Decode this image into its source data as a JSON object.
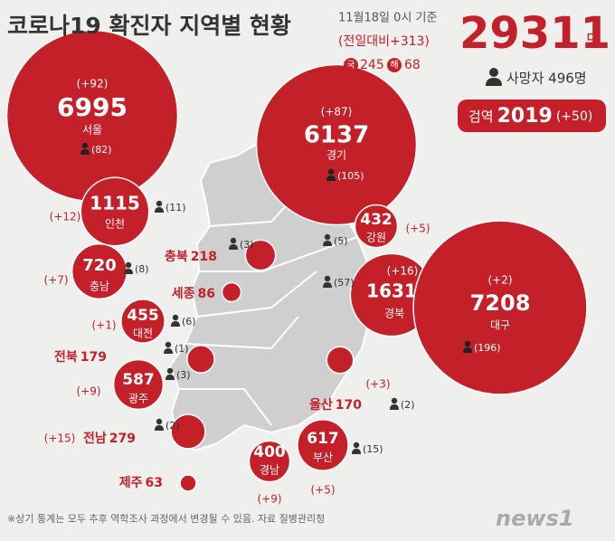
{
  "header": {
    "title": "코로나19 확진자 지역별 현황",
    "date": "11월18일 0시 기준",
    "total": 29311,
    "total_unit": "명",
    "daily_change": "(전일대비+313)",
    "domestic_label": "국",
    "domestic": 245,
    "overseas_label": "해",
    "overseas": 68,
    "deaths": "사망자 496명",
    "quarantine_label": "검역",
    "quarantine": 2019,
    "quarantine_change": "(+50)"
  },
  "regions": [
    {
      "name": "서울",
      "count": 6995,
      "change": "(+92)",
      "deaths": "(82)"
    },
    {
      "name": "경기",
      "count": 6137,
      "change": "(+87)",
      "deaths": "(105)"
    },
    {
      "name": "인천",
      "count": 1115,
      "change": "(+12)",
      "deaths": "(11)"
    },
    {
      "name": "강원",
      "count": 432,
      "change": "(+5)",
      "deaths": "(5)"
    },
    {
      "name": "충북",
      "count": 218,
      "deaths": "(3)"
    },
    {
      "name": "충남",
      "count": 720,
      "change": "(+7)",
      "deaths": "(8)"
    },
    {
      "name": "세종",
      "count": 86
    },
    {
      "name": "대전",
      "count": 455,
      "change": "(+1)",
      "deaths": "(6)"
    },
    {
      "name": "경북",
      "count": 1631,
      "change": "(+16)",
      "deaths": "(57)"
    },
    {
      "name": "대구",
      "count": 7208,
      "change": "(+2)",
      "deaths": "(196)"
    },
    {
      "name": "전북",
      "count": 179,
      "deaths": "(1)"
    },
    {
      "name": "광주",
      "count": 587,
      "change": "(+9)",
      "deaths": "(3)"
    },
    {
      "name": "울산",
      "count": 170,
      "change": "(+3)",
      "deaths": "(2)"
    },
    {
      "name": "전남",
      "count": 279,
      "change": "(+15)",
      "deaths": "(2)"
    },
    {
      "name": "부산",
      "count": 617,
      "change": "(+5)",
      "deaths": "(15)"
    },
    {
      "name": "경남",
      "count": 400,
      "change": "(+9)"
    },
    {
      "name": "제주",
      "count": 63
    }
  ],
  "footer": {
    "note": "※상기 통계는 모두 추후 역학조사 과정에서 변경될 수 있음.  자료 질병관리청",
    "logo": "news1"
  }
}
